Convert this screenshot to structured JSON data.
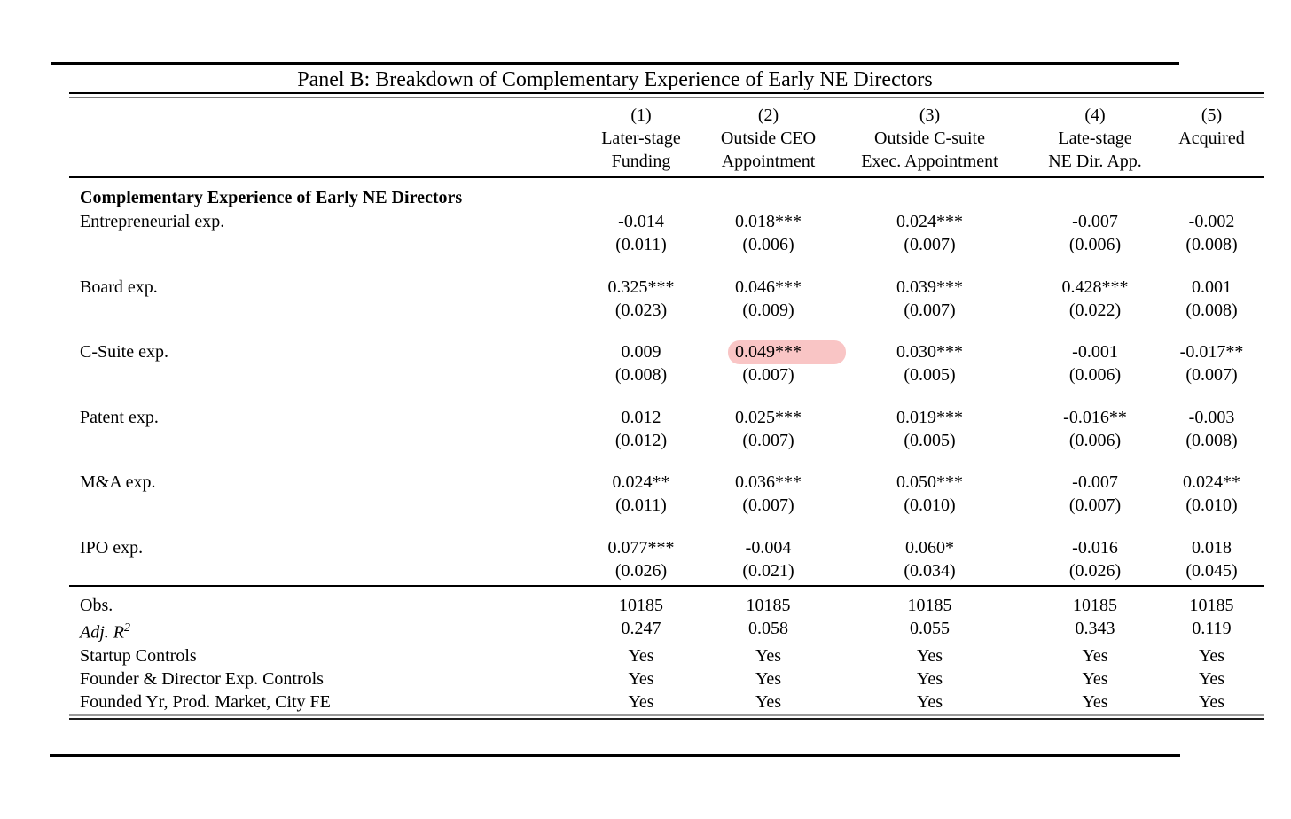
{
  "panel": {
    "title": "Panel B: Breakdown of Complementary Experience of Early NE Directors"
  },
  "table": {
    "highlight_color": "#f9c5c5",
    "columns": [
      {
        "number": "(1)",
        "label_lines": [
          "Later-stage",
          "Funding"
        ]
      },
      {
        "number": "(2)",
        "label_lines": [
          "Outside CEO",
          "Appointment"
        ]
      },
      {
        "number": "(3)",
        "label_lines": [
          "Outside C-suite",
          "Exec. Appointment"
        ]
      },
      {
        "number": "(4)",
        "label_lines": [
          "Late-stage",
          "NE Dir. App."
        ]
      },
      {
        "number": "(5)",
        "label_lines": [
          "Acquired",
          ""
        ]
      }
    ],
    "section_header": "Complementary Experience of Early NE Directors",
    "coefficient_rows": [
      {
        "label": "Entrepreneurial exp.",
        "cells": [
          {
            "coef": "-0.014",
            "se": "(0.011)"
          },
          {
            "coef": "0.018***",
            "se": "(0.006)"
          },
          {
            "coef": "0.024***",
            "se": "(0.007)"
          },
          {
            "coef": "-0.007",
            "se": "(0.006)"
          },
          {
            "coef": "-0.002",
            "se": "(0.008)"
          }
        ]
      },
      {
        "label": "Board exp.",
        "cells": [
          {
            "coef": "0.325***",
            "se": "(0.023)"
          },
          {
            "coef": "0.046***",
            "se": "(0.009)"
          },
          {
            "coef": "0.039***",
            "se": "(0.007)"
          },
          {
            "coef": "0.428***",
            "se": "(0.022)"
          },
          {
            "coef": "0.001",
            "se": "(0.008)"
          }
        ]
      },
      {
        "label": "C-Suite exp.",
        "cells": [
          {
            "coef": "0.009",
            "se": "(0.008)"
          },
          {
            "coef": "0.049***",
            "se": "(0.007)",
            "highlighted": true
          },
          {
            "coef": "0.030***",
            "se": "(0.005)"
          },
          {
            "coef": "-0.001",
            "se": "(0.006)"
          },
          {
            "coef": "-0.017**",
            "se": "(0.007)"
          }
        ]
      },
      {
        "label": "Patent exp.",
        "cells": [
          {
            "coef": "0.012",
            "se": "(0.012)"
          },
          {
            "coef": "0.025***",
            "se": "(0.007)"
          },
          {
            "coef": "0.019***",
            "se": "(0.005)"
          },
          {
            "coef": "-0.016**",
            "se": "(0.006)"
          },
          {
            "coef": "-0.003",
            "se": "(0.008)"
          }
        ]
      },
      {
        "label": "M&A exp.",
        "cells": [
          {
            "coef": "0.024**",
            "se": "(0.011)"
          },
          {
            "coef": "0.036***",
            "se": "(0.007)"
          },
          {
            "coef": "0.050***",
            "se": "(0.010)"
          },
          {
            "coef": "-0.007",
            "se": "(0.007)"
          },
          {
            "coef": "0.024**",
            "se": "(0.010)"
          }
        ]
      },
      {
        "label": "IPO exp.",
        "cells": [
          {
            "coef": "0.077***",
            "se": "(0.026)"
          },
          {
            "coef": "-0.004",
            "se": "(0.021)"
          },
          {
            "coef": "0.060*",
            "se": "(0.034)"
          },
          {
            "coef": "-0.016",
            "se": "(0.026)"
          },
          {
            "coef": "0.018",
            "se": "(0.045)"
          }
        ]
      }
    ],
    "summary_rows": [
      {
        "label": "Obs.",
        "values": [
          "10185",
          "10185",
          "10185",
          "10185",
          "10185"
        ]
      },
      {
        "label": "Adj. R",
        "label_sup": "2",
        "italic": true,
        "values": [
          "0.247",
          "0.058",
          "0.055",
          "0.343",
          "0.119"
        ]
      },
      {
        "label": "Startup Controls",
        "values": [
          "Yes",
          "Yes",
          "Yes",
          "Yes",
          "Yes"
        ]
      },
      {
        "label": "Founder & Director Exp. Controls",
        "values": [
          "Yes",
          "Yes",
          "Yes",
          "Yes",
          "Yes"
        ]
      },
      {
        "label": "Founded Yr, Prod. Market, City FE",
        "values": [
          "Yes",
          "Yes",
          "Yes",
          "Yes",
          "Yes"
        ]
      }
    ]
  }
}
